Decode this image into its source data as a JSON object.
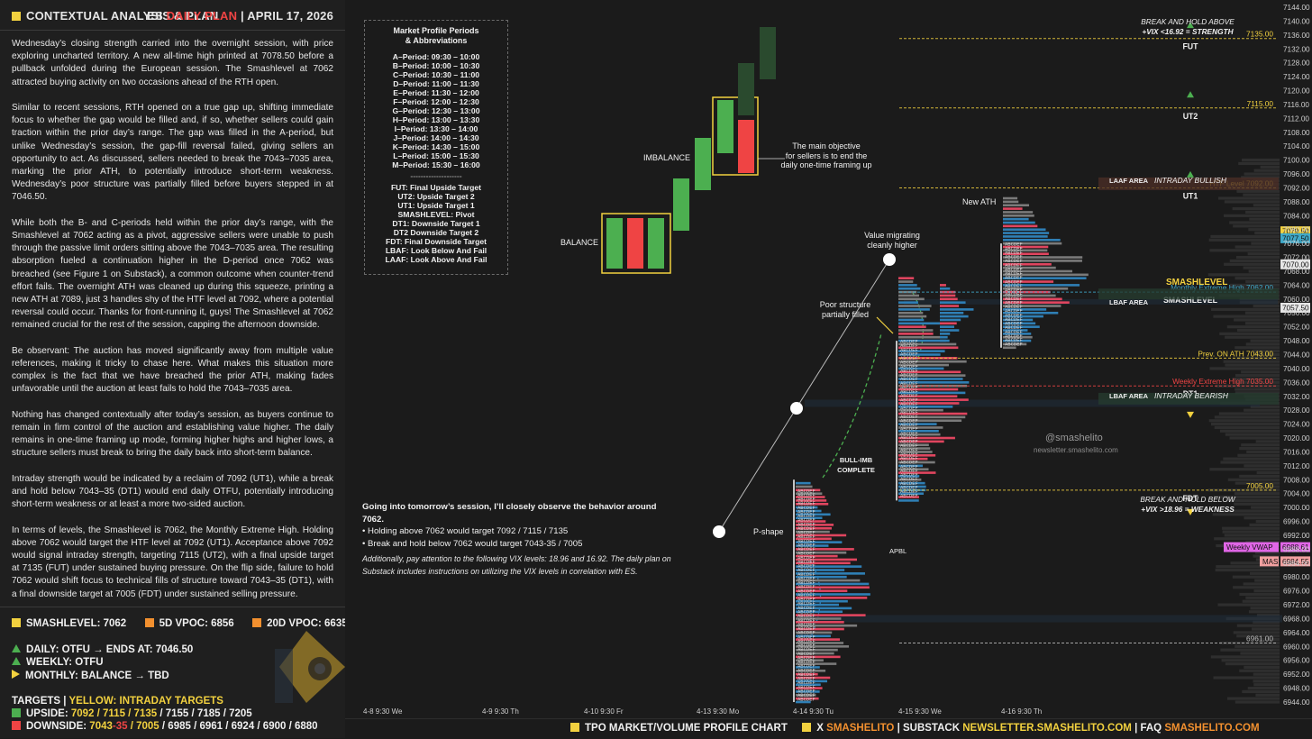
{
  "header": {
    "title": "CONTEXTUAL ANALYSIS & PLAN",
    "instrument": "ES",
    "plan_label": "DAILY PLAN",
    "separator": "|",
    "date": "APRIL 17, 2026"
  },
  "paragraphs": [
    "Wednesday’s closing strength carried into the overnight session, with price exploring uncharted territory. A new all-time high printed at 7078.50 before a pullback unfolded during the European session. The Smashlevel at 7062 attracted buying activity on two occasions ahead of the RTH open.",
    "Similar to recent sessions, RTH opened on a true gap up, shifting immediate focus to whether the gap would be filled and, if so, whether sellers could gain traction within the prior day’s range. The gap was filled in the A-period, but unlike Wednesday’s session, the gap-fill reversal failed, giving sellers an opportunity to act. As discussed, sellers needed to break the 7043–7035 area, marking the prior ATH, to potentially introduce short-term weakness. Wednesday’s poor structure was partially filled before buyers stepped in at 7046.50.",
    "While both the B- and C-periods held within the prior day’s range, with the Smashlevel at 7062 acting as a pivot, aggressive sellers were unable to push through the passive limit orders sitting above the 7043–7035 area. The resulting absorption fueled a continuation higher in the D-period once 7062 was breached (see Figure 1 on Substack), a common outcome when counter-trend effort fails. The overnight ATH was cleaned up during this squeeze, printing a new ATH at 7089, just 3 handles shy of the HTF level at 7092, where a potential reversal could occur. Thanks for front-running it, guys! The Smashlevel at 7062 remained crucial for the rest of the session, capping the afternoon downside.",
    "Be observant: The auction has moved significantly away from multiple value references, making it tricky to chase here. What makes this situation more complex is the fact that we have breached the prior ATH, making fades unfavorable until the auction at least fails to hold the 7043–7035 area.",
    "Nothing has changed contextually after today’s session, as buyers continue to remain in firm control of the auction and establishing value higher. The daily remains in one-time framing up mode, forming higher highs and higher lows, a structure sellers must break to bring the daily back into short-term balance.",
    "Intraday strength would be indicated by a reclaim of 7092 (UT1), while a break and hold below 7043–35 (DT1) would end daily OTFU, potentially introducing short-term weakness or at least a more two-sided auction.",
    "In terms of levels, the Smashlevel is 7062, the Monthly Extreme High. Holding above 7062 would target the HTF level at 7092 (UT1). Acceptance above 7092 would signal intraday strength, targeting 7115 (UT2), with a final upside target at 7135 (FUT) under sustained buying pressure. On the flip side, failure to hold 7062 would shift focus to technical fills of structure toward 7043–35 (DT1), with a final downside target at 7005 (FDT) under sustained selling pressure."
  ],
  "levels": {
    "smashlevel": "SMASHLEVEL: 7062",
    "vpoc5": "5D VPOC: 6856",
    "vpoc20": "20D VPOC: 6635",
    "daily": "DAILY: OTFU → ENDS AT: 7046.50",
    "weekly": "WEEKLY: OTFU",
    "monthly": "MONTHLY: BALANCE → TBD",
    "targets_label": "TARGETS",
    "targets_sep": "|",
    "targets_yellow": "YELLOW: INTRADAY TARGETS",
    "upside_label": "UPSIDE:",
    "upside_yellow": "7092 / 7115 / 7135",
    "upside_rest": "/ 7155 / 7185 / 7205",
    "downside_label": "DOWNSIDE:",
    "downside_a": "7043",
    "downside_b": "-35",
    "downside_c": "/ 7005",
    "downside_rest": "/ 6985 / 6961 / 6924 / 6900 / 6880"
  },
  "legend": {
    "title1": "Market Profile Periods",
    "title2": "& Abbreviations",
    "periods": [
      "A–Period: 09:30 – 10:00",
      "B–Period: 10:00 – 10:30",
      "C–Period: 10:30 – 11:00",
      "D–Period: 11:00 – 11:30",
      "E–Period: 11:30 – 12:00",
      "F–Period: 12:00 – 12:30",
      "G–Period: 12:30 – 13:00",
      "H–Period: 13:00 – 13:30",
      "I–Period: 13:30 – 14:00",
      "J–Period: 14:00 – 14:30",
      "K–Period: 14:30 – 15:00",
      "L–Period: 15:00 – 15:30",
      "M–Period: 15:30 – 16:00"
    ],
    "separator": "--------------------",
    "abbreviations": [
      "FUT: Final Upside Target",
      "UT2: Upside Target 2",
      "UT1: Upside Target 1",
      "SMASHLEVEL: Pivot",
      "DT1: Downside Target 1",
      "DT2 Downside Target 2",
      "FDT: Final Downside Target",
      "LBAF: Look Below And Fail",
      "LAAF: Look Above And Fail"
    ]
  },
  "note": {
    "intro": "Going into tomorrow’s session, I’ll closely observe the behavior around 7062.",
    "b1": "• Holding above 7062 would target 7092 / 7115 / 7135",
    "b2": "• Break and hold below 7062 would target 7043-35 / 7005",
    "vix": "Additionally, pay attention to the following VIX levels: 18.96 and 16.92. The daily plan on Substack includes instructions on utilizing the VIX levels in correlation with ES."
  },
  "annotations": {
    "balance": "BALANCE",
    "imbalance": "IMBALANCE",
    "objective_1": "The main objective",
    "objective_2": "for sellers is to end the",
    "objective_3": "daily one-time framing up",
    "value_1": "Value migrating",
    "value_2": "cleanly higher",
    "poor_1": "Poor structure",
    "poor_2": "partially filled",
    "bull_1": "BULL-IMB",
    "bull_2": "COMPLETE",
    "pshape": "P-shape",
    "apbl": "APBL",
    "new_ath": "New ATH",
    "handle": "@smashelito",
    "newsletter": "newsletter.smashelito.com",
    "break_above_1": "BREAK AND HOLD ABOVE",
    "break_above_2": "+VIX <16.92 = STRENGTH",
    "break_below_1": "BREAK AND HOLD BELOW",
    "break_below_2": "+VIX >18.96 = WEAKNESS",
    "laaf": "LAAF AREA",
    "intraday_bullish": "INTRADAY BULLISH",
    "lbaf1": "LBAF AREA",
    "lbaf2": "LBAF AREA",
    "intraday_bearish": "INTRADAY BEARISH",
    "smashlevel": "SMASHLEVEL"
  },
  "chart_data": {
    "type": "table",
    "price_axis": [
      7144,
      7140,
      7136,
      7132,
      7128,
      7124,
      7120,
      7116,
      7112,
      7108,
      7104,
      7100,
      7096,
      7092,
      7088,
      7084,
      7080,
      7076,
      7072,
      7068,
      7064,
      7060,
      7056,
      7052,
      7048,
      7044,
      7040,
      7036,
      7032,
      7028,
      7024,
      7020,
      7016,
      7012,
      7008,
      7004,
      7000,
      6996,
      6992,
      6988,
      6984,
      6980,
      6976,
      6972,
      6968,
      6964,
      6960,
      6956,
      6952,
      6948,
      6944
    ],
    "time_axis": [
      "4-8  9:30 We",
      "4-9  9:30 Th",
      "4-10  9:30 Fr",
      "4-13  9:30 Mo",
      "4-14  9:30 Tu",
      "4-15  9:30 We",
      "4-16  9:30 Th"
    ],
    "levels": [
      {
        "name": "FUT",
        "price": 7135,
        "label": "7135.00",
        "color": "#f2d13f"
      },
      {
        "name": "UT2",
        "price": 7115,
        "label": "7115.00",
        "color": "#f2d13f"
      },
      {
        "name": "UT1",
        "price": 7092,
        "label": "HTF Level  7092.00",
        "color": "#f2d13f"
      },
      {
        "name": "SMASHLEVEL",
        "price": 7062,
        "label": "Monthly Extreme High  7062.00",
        "color": "#3fa9c9"
      },
      {
        "name": "",
        "price": 7043,
        "label": "Prev. ON ATH  7043.00",
        "color": "#f2d13f"
      },
      {
        "name": "DT1",
        "price": 7035,
        "label": "Weekly Extreme High  7035.00",
        "color": "#ef4444"
      },
      {
        "name": "FDT",
        "price": 7005,
        "label": "7005.00",
        "color": "#f2d13f"
      },
      {
        "name": "",
        "price": 6961,
        "label": "6961.00",
        "color": "#bbbbbb"
      }
    ],
    "price_tags": [
      {
        "label": "7079.50",
        "bg": "#f2d13f",
        "fg": "#111"
      },
      {
        "label": "7077.50",
        "bg": "#3fa9c9",
        "fg": "#111"
      },
      {
        "label": "7070.00",
        "bg": "#e6e6e6",
        "fg": "#111"
      },
      {
        "label": "7057.50",
        "bg": "#e6e6e6",
        "fg": "#111"
      },
      {
        "label": "6988.61",
        "bg": "#e066e6",
        "fg": "#111",
        "name": "Weekly VWAP"
      },
      {
        "label": "6984.55",
        "bg": "#f2a0a0",
        "fg": "#111",
        "name": "MAS"
      }
    ]
  },
  "footer": {
    "chart_label": "TPO MARKET/VOLUME PROFILE CHART",
    "x_label": "X",
    "x_handle": "SMASHELITO",
    "sep": "|",
    "substack_label": "SUBSTACK",
    "substack_url": "NEWSLETTER.SMASHELITO.COM",
    "faq_label": "FAQ",
    "faq_handle": "SMASHELITO.COM"
  },
  "colors": {
    "accent": "#f2d13f",
    "red": "#ef4444",
    "green": "#4caf50",
    "blue": "#2f7fb5",
    "orange": "#f2902f"
  }
}
